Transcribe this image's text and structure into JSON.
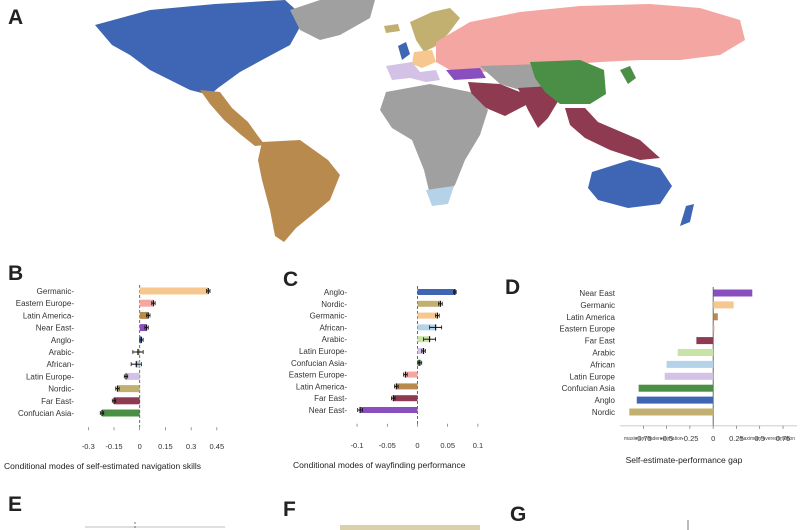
{
  "panels": {
    "a": "A",
    "b": "B",
    "c": "C",
    "d": "D",
    "e": "E",
    "f": "F",
    "g": "G"
  },
  "colors": {
    "Germanic": "#f6c88f",
    "Eastern Europe": "#f4a6a3",
    "Latin America": "#b88a4e",
    "Near East": "#8a4fbf",
    "Anglo": "#3f66b4",
    "Arabic": "#c9e3a6",
    "African": "#b5d3e8",
    "Latin Europe": "#d3c1e6",
    "Nordic": "#c2b070",
    "Far East": "#8e3a50",
    "Confucian Asia": "#4a8f45",
    "Other": "#a0a0a0"
  },
  "chart_data": [
    {
      "type": "bar",
      "orientation": "horizontal",
      "panel": "B",
      "categories": [
        "Germanic",
        "Eastern Europe",
        "Latin America",
        "Near East",
        "Anglo",
        "Arabic",
        "African",
        "Latin Europe",
        "Nordic",
        "Far East",
        "Confucian Asia"
      ],
      "values": [
        0.4,
        0.08,
        0.05,
        0.04,
        0.01,
        -0.01,
        -0.02,
        -0.08,
        -0.13,
        -0.15,
        -0.22
      ],
      "errors": [
        0.01,
        0.01,
        0.01,
        0.01,
        0.01,
        0.03,
        0.03,
        0.01,
        0.01,
        0.01,
        0.01
      ],
      "xticks": [
        -0.3,
        -0.15,
        0,
        0.15,
        0.3,
        0.45
      ],
      "xtick_labels": [
        "-0.3",
        "-0.15",
        "0",
        "0.15",
        "0.3",
        "0.45"
      ],
      "xlim": [
        -0.36,
        0.48
      ],
      "xlabel": "Conditional modes of self-estimated navigation skills"
    },
    {
      "type": "bar",
      "orientation": "horizontal",
      "panel": "C",
      "categories": [
        "Anglo",
        "Nordic",
        "Germanic",
        "African",
        "Arabic",
        "Latin Europe",
        "Confucian Asia",
        "Eastern Europe",
        "Latin America",
        "Far East",
        "Near East"
      ],
      "values": [
        0.062,
        0.038,
        0.033,
        0.03,
        0.02,
        0.01,
        0.004,
        -0.02,
        -0.035,
        -0.04,
        -0.095
      ],
      "errors": [
        0.002,
        0.003,
        0.003,
        0.01,
        0.01,
        0.003,
        0.003,
        0.003,
        0.003,
        0.003,
        0.004
      ],
      "xticks": [
        -0.1,
        -0.05,
        0,
        0.05,
        0.1
      ],
      "xtick_labels": [
        "-0.1",
        "-0.05",
        "0",
        "0.05",
        "0.1"
      ],
      "xlim": [
        -0.11,
        0.12
      ],
      "xlabel": "Conditional modes of wayfinding performance"
    },
    {
      "type": "bar",
      "orientation": "horizontal",
      "panel": "D",
      "categories": [
        "Near East",
        "Germanic",
        "Latin America",
        "Eastern Europe",
        "Far East",
        "Arabic",
        "African",
        "Latin Europe",
        "Confucian Asia",
        "Anglo",
        "Nordic"
      ],
      "values": [
        0.42,
        0.22,
        0.05,
        0.0,
        -0.18,
        -0.38,
        -0.5,
        -0.52,
        -0.8,
        -0.82,
        -0.9
      ],
      "xticks": [
        -0.75,
        -0.5,
        -0.25,
        0,
        0.25,
        0.5,
        0.75
      ],
      "xtick_labels": [
        "-0.75",
        "-0.5",
        "-0.25",
        "0",
        "0.25",
        "0.5",
        "0.75"
      ],
      "xlim": [
        -1.0,
        0.9
      ],
      "axis_end_labels": [
        "maximum underestimation",
        "maximum overestimation"
      ],
      "xlabel": "Self-estimate-performance gap"
    }
  ]
}
